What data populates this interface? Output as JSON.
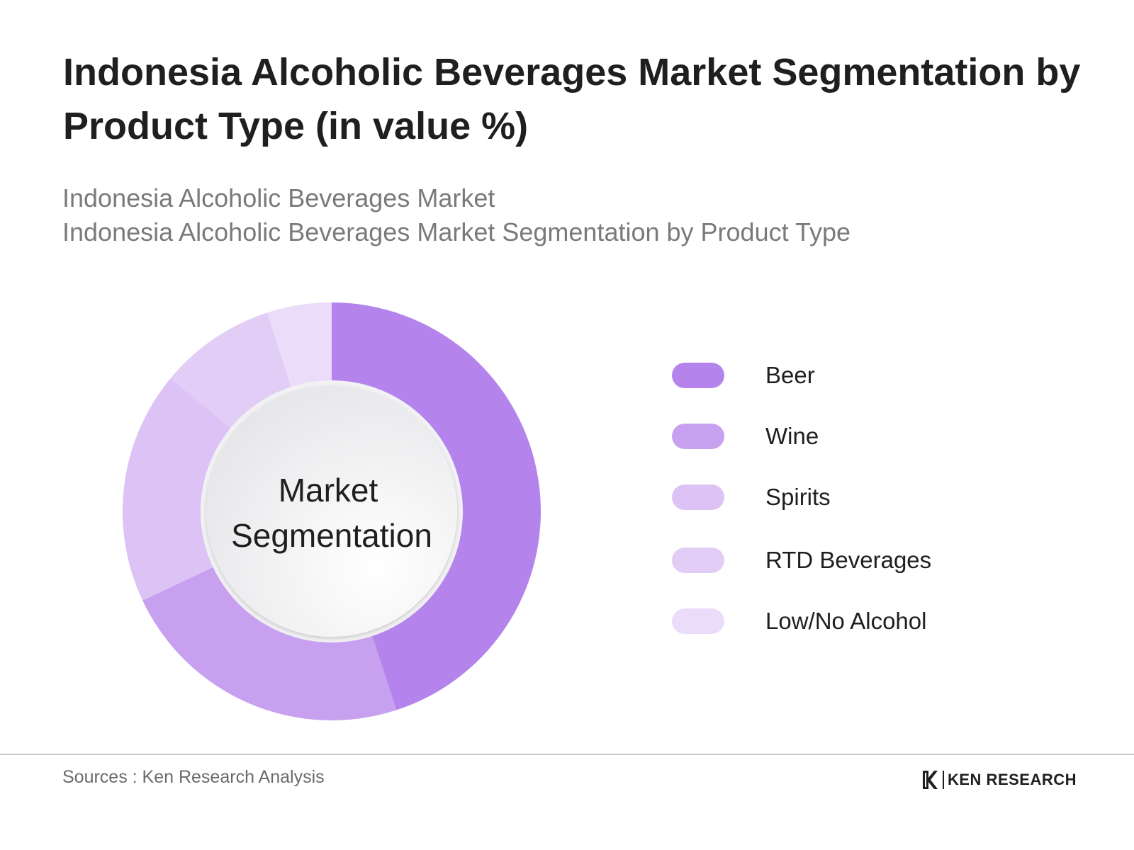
{
  "title": "Indonesia Alcoholic Beverages Market Segmentation by Product Type (in value %)",
  "subtitle_lines": [
    "Indonesia Alcoholic Beverages Market",
    "Indonesia Alcoholic Beverages Market Segmentation by Product Type"
  ],
  "center_label_lines": [
    "Market",
    "Segmentation"
  ],
  "colors": {
    "beer": "#b484ec",
    "wine": "#c7a1ef",
    "spirits": "#dcc2f5",
    "rtd": "#e2cdf6",
    "low_no": "#ebdcf9"
  },
  "chart_data": {
    "type": "pie",
    "title": "Indonesia Alcoholic Beverages Market Segmentation by Product Type (in value %)",
    "categories": [
      "Beer",
      "Wine",
      "Spirits",
      "RTD Beverages",
      "Low/No Alcohol"
    ],
    "values": [
      45,
      23,
      18,
      9,
      5
    ],
    "colors": [
      "#b484ec",
      "#c7a1ef",
      "#dcc2f5",
      "#e2cdf6",
      "#ebdcf9"
    ],
    "legend_position": "right",
    "center_label": "Market Segmentation"
  },
  "footer": {
    "source": "Sources : Ken Research Analysis",
    "logo_text": "KEN RESEARCH"
  }
}
